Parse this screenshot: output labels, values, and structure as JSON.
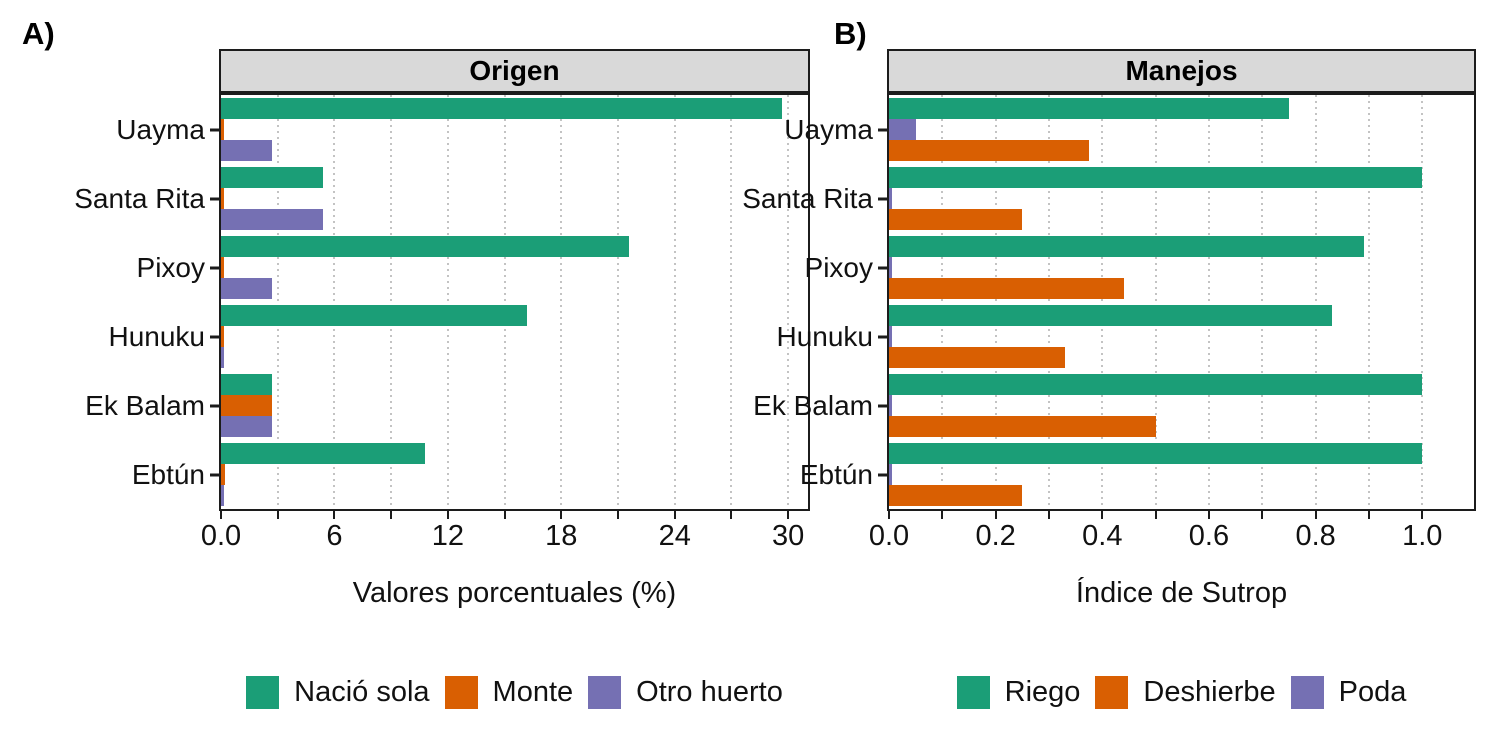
{
  "figure": {
    "background": "#ffffff",
    "text_color": "#111111",
    "strip_fill": "#d9d9d9",
    "border_color": "#1c1c1c",
    "gridline_color": "#c3c3c3"
  },
  "chart_data": [
    {
      "type": "bar",
      "orientation": "horizontal",
      "panel_tag": "A)",
      "title": "Origen",
      "xlabel": "Valores porcentuales (%)",
      "categories": [
        "Uayma",
        "Santa Rita",
        "Pixoy",
        "Hunuku",
        "Ek Balam",
        "Ebtún"
      ],
      "series": [
        {
          "name": "Nació sola",
          "color": "#1B9E77",
          "values": [
            29.7,
            5.4,
            21.6,
            16.2,
            2.7,
            10.8
          ]
        },
        {
          "name": "Monte",
          "color": "#D95F02",
          "values": [
            0.15,
            0.15,
            0.15,
            0.15,
            2.7,
            0.2
          ]
        },
        {
          "name": "Otro huerto",
          "color": "#7570B3",
          "values": [
            2.7,
            5.4,
            2.7,
            0.15,
            2.7,
            0.15
          ]
        }
      ],
      "row_order": [
        0,
        1,
        2
      ],
      "x_major_ticks": {
        "values": [
          0,
          6,
          12,
          18,
          24,
          30
        ],
        "labels": [
          "0.0",
          "6",
          "12",
          "18",
          "24",
          "30"
        ]
      },
      "x_minor_step": 3,
      "x_axis_max_tick": 30,
      "xlim": [
        0,
        31.05
      ],
      "grid": "vertical-dotted",
      "legend_position": "bottom"
    },
    {
      "type": "bar",
      "orientation": "horizontal",
      "panel_tag": "B)",
      "title": "Manejos",
      "xlabel": "Índice de Sutrop",
      "categories": [
        "Uayma",
        "Santa Rita",
        "Pixoy",
        "Hunuku",
        "Ek Balam",
        "Ebtún"
      ],
      "series": [
        {
          "name": "Riego",
          "color": "#1B9E77",
          "values": [
            0.75,
            1.0,
            0.89,
            0.83,
            1.0,
            1.0
          ]
        },
        {
          "name": "Deshierbe",
          "color": "#D95F02",
          "values": [
            0.375,
            0.25,
            0.44,
            0.33,
            0.5,
            0.25
          ]
        },
        {
          "name": "Poda",
          "color": "#7570B3",
          "values": [
            0.05,
            0.005,
            0.005,
            0.005,
            0.005,
            0.005
          ]
        }
      ],
      "row_order": [
        0,
        2,
        1
      ],
      "x_major_ticks": {
        "values": [
          0,
          0.2,
          0.4,
          0.6,
          0.8,
          1.0
        ],
        "labels": [
          "0.0",
          "0.2",
          "0.4",
          "0.6",
          "0.8",
          "1.0"
        ]
      },
      "x_minor_step": 0.1,
      "x_axis_max_tick": 1.0,
      "xlim": [
        0,
        1.097
      ],
      "grid": "vertical-dotted",
      "legend_position": "bottom"
    }
  ]
}
